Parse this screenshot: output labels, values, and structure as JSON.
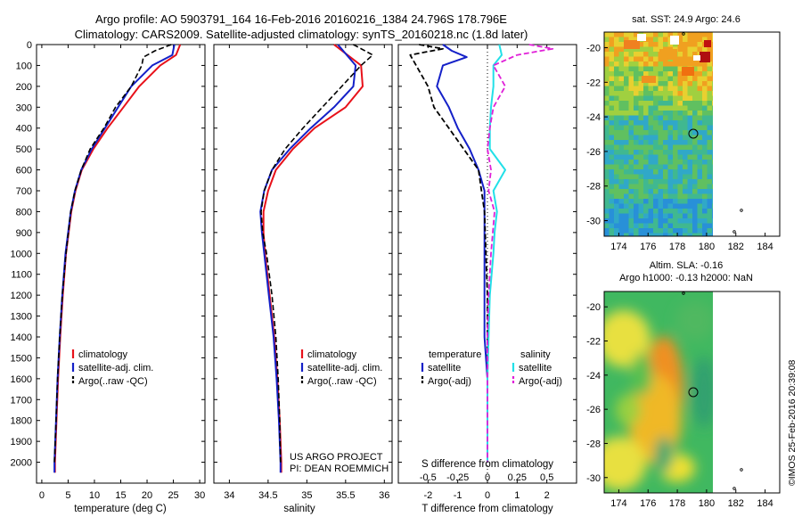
{
  "header": {
    "title_line1": "Argo profile: AO 5903791_164 16-Feb-2016 20160216_1384 24.796S 178.796E",
    "title_line2": "Climatology: CARS2009. Satellite-adjusted climatology: synTS_20160218.nc (1.8d later)"
  },
  "colors": {
    "climatology": "#e8111a",
    "satellite": "#1420c8",
    "argo": "#000000",
    "salinity_satellite": "#22e0e8",
    "salinity_argo": "#e020d8"
  },
  "depth_ticks": [
    "0",
    "100",
    "200",
    "300",
    "400",
    "500",
    "600",
    "700",
    "800",
    "900",
    "1000",
    "1100",
    "1200",
    "1300",
    "1400",
    "1500",
    "1600",
    "1700",
    "1800",
    "1900",
    "2000"
  ],
  "credit": {
    "line1": "US ARGO PROJECT",
    "line2": "PI: DEAN ROEMMICH"
  },
  "map_ticks": {
    "lon": [
      "174",
      "176",
      "178",
      "180",
      "182",
      "184"
    ],
    "lat": [
      "-20",
      "-22",
      "-24",
      "-26",
      "-28",
      "-30"
    ]
  },
  "map1": {
    "title": "sat. SST: 24.9 Argo: 24.6"
  },
  "map2": {
    "title_line1": "Altim. SLA: -0.16",
    "title_line2": "Argo h1000: -0.13 h2000: NaN"
  },
  "timestamp": "©IMOS 25-Feb-2016 20:39:08",
  "chart_data": [
    {
      "type": "line",
      "xlabel": "temperature (deg C)",
      "ylabel": "",
      "xlim": [
        -1,
        31
      ],
      "ylim": [
        2100,
        0
      ],
      "xticks": [
        "0",
        "5",
        "10",
        "15",
        "20",
        "25",
        "30"
      ],
      "legend": {
        "position": "lower-center",
        "entries": [
          "climatology",
          "satellite-adj. clim.",
          "Argo(..raw -QC)"
        ]
      },
      "series": [
        {
          "name": "climatology",
          "depth": [
            0,
            50,
            100,
            200,
            300,
            400,
            500,
            600,
            700,
            800,
            1000,
            1200,
            1400,
            1600,
            1800,
            2000,
            2050
          ],
          "values": [
            26.3,
            25.5,
            22.5,
            18.5,
            15.5,
            12.5,
            9.8,
            7.6,
            6.4,
            5.6,
            4.6,
            4.0,
            3.5,
            3.1,
            2.8,
            2.5,
            2.5
          ]
        },
        {
          "name": "satellite-adj. clim.",
          "depth": [
            0,
            50,
            100,
            200,
            300,
            400,
            500,
            600,
            700,
            800,
            1000,
            1200,
            1400,
            1600,
            1800,
            2000,
            2050
          ],
          "values": [
            25.2,
            24.8,
            21.0,
            17.0,
            14.5,
            12.0,
            9.5,
            7.5,
            6.3,
            5.5,
            4.5,
            3.9,
            3.4,
            3.0,
            2.7,
            2.4,
            2.4
          ]
        },
        {
          "name": "Argo(..raw -QC)",
          "depth": [
            0,
            30,
            60,
            100,
            200,
            300,
            400,
            500,
            600,
            700,
            800,
            1000,
            1200,
            1400,
            1600,
            1800,
            2000
          ],
          "values": [
            24.6,
            21.5,
            19.3,
            19.0,
            17.0,
            14.0,
            11.8,
            9.2,
            7.5,
            6.3,
            5.5,
            4.6,
            3.9,
            3.4,
            3.0,
            2.7,
            2.4
          ]
        }
      ]
    },
    {
      "type": "line",
      "xlabel": "salinity",
      "ylabel": "",
      "xlim": [
        33.8,
        36.1
      ],
      "ylim": [
        2100,
        0
      ],
      "xticks": [
        "34",
        "34.5",
        "35",
        "35.5",
        "36"
      ],
      "legend": {
        "position": "lower-center",
        "entries": [
          "climatology",
          "satellite-adj. clim.",
          "Argo(..raw -QC)"
        ]
      },
      "series": [
        {
          "name": "climatology",
          "depth": [
            0,
            100,
            200,
            300,
            400,
            500,
            600,
            700,
            800,
            900,
            1000,
            1200,
            1400,
            1600,
            1800,
            2000,
            2050
          ],
          "values": [
            35.35,
            35.7,
            35.72,
            35.5,
            35.1,
            34.82,
            34.6,
            34.5,
            34.44,
            34.44,
            34.46,
            34.52,
            34.58,
            34.62,
            34.65,
            34.67,
            34.67
          ]
        },
        {
          "name": "satellite-adj. clim.",
          "depth": [
            0,
            100,
            200,
            300,
            400,
            500,
            600,
            700,
            800,
            900,
            1000,
            1200,
            1400,
            1600,
            1800,
            2000,
            2050
          ],
          "values": [
            35.4,
            35.63,
            35.6,
            35.35,
            35.05,
            34.78,
            34.55,
            34.45,
            34.4,
            34.42,
            34.45,
            34.51,
            34.57,
            34.61,
            34.64,
            34.66,
            34.66
          ]
        },
        {
          "name": "Argo(..raw -QC)",
          "depth": [
            0,
            50,
            100,
            200,
            300,
            400,
            500,
            600,
            700,
            800,
            900,
            1000,
            1200,
            1400,
            1600,
            1800,
            2000
          ],
          "values": [
            35.6,
            35.85,
            35.7,
            35.45,
            35.2,
            34.95,
            34.72,
            34.55,
            34.45,
            34.41,
            34.43,
            34.48,
            34.55,
            34.6,
            34.63,
            34.65,
            34.66
          ]
        }
      ]
    },
    {
      "type": "line",
      "xlabel": "T difference from climatology",
      "top_xlabel": "S difference from climatology",
      "xlim": [
        -3,
        3
      ],
      "ylim": [
        2100,
        0
      ],
      "xticks": [
        "-2",
        "-1",
        "0",
        "1",
        "2"
      ],
      "top_xticks": [
        "-0.5",
        "-0.25",
        "0",
        "0.25",
        "0.5"
      ],
      "top_xlim": [
        -0.75,
        0.75
      ],
      "legend": {
        "position": "lower-center",
        "entries": [
          "temperature",
          "satellite",
          "Argo(-adj)",
          "salinity",
          "satellite",
          "Argo(-adj)"
        ]
      },
      "series": [
        {
          "name": "temperature satellite",
          "depth": [
            0,
            30,
            60,
            100,
            200,
            300,
            400,
            500,
            600,
            700,
            800,
            1000,
            1200,
            1400,
            1600,
            1800,
            2000
          ],
          "values": [
            -1.5,
            -1.2,
            -0.7,
            -1.5,
            -1.7,
            -1.3,
            -1.0,
            -0.6,
            -0.3,
            -0.1,
            -0.1,
            -0.1,
            -0.1,
            -0.1,
            0,
            0,
            0
          ]
        },
        {
          "name": "temperature Argo(-adj)",
          "depth": [
            0,
            20,
            50,
            100,
            200,
            300,
            400,
            500,
            600,
            700,
            800,
            1000,
            1200,
            1400,
            1600,
            1800,
            2000
          ],
          "values": [
            -2.3,
            -1.5,
            -2.6,
            -2.4,
            -2.0,
            -1.8,
            -1.3,
            -0.8,
            -0.3,
            -0.2,
            -0.1,
            -0.05,
            0,
            0,
            0,
            0,
            0
          ]
        },
        {
          "name": "salinity satellite",
          "depth": [
            0,
            50,
            100,
            200,
            300,
            400,
            500,
            600,
            700,
            800,
            900,
            1000,
            1200,
            1400,
            1600,
            1800,
            2000
          ],
          "values": [
            0.1,
            0.12,
            0.05,
            0.05,
            0.03,
            0.02,
            0.02,
            0.15,
            0.05,
            0.08,
            0.06,
            0.05,
            0.02,
            0.01,
            0,
            0,
            0
          ]
        },
        {
          "name": "salinity Argo(-adj)",
          "depth": [
            0,
            20,
            50,
            100,
            200,
            300,
            400,
            500,
            600,
            700,
            800,
            1000,
            1200,
            1400,
            1600,
            1800,
            2000
          ],
          "values": [
            0.35,
            0.55,
            0.25,
            0.05,
            0.15,
            0.05,
            0.02,
            0,
            0.03,
            0.01,
            0.06,
            0.03,
            0.01,
            0,
            0,
            0,
            0
          ]
        }
      ]
    }
  ]
}
